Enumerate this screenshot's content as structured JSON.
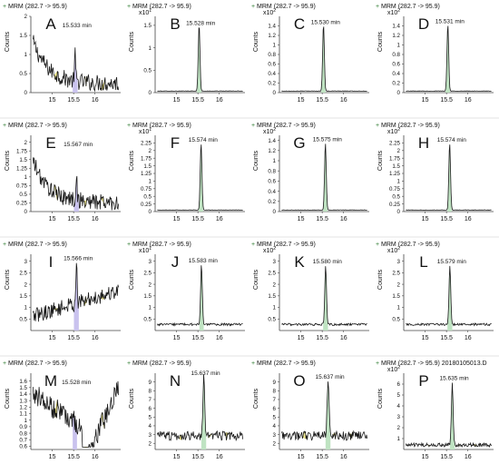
{
  "chart_data": [
    {
      "id": "A",
      "letter": "A",
      "type": "line",
      "header": "MRM (282.7 -> 95.9)",
      "ylabel": "Counts",
      "multiplier": "",
      "peak_label": "15.533 min",
      "peak_rt": 15.533,
      "profile": "noisy_down",
      "ylim": [
        0,
        2
      ],
      "yticks": [
        0,
        0.5,
        1,
        1.5,
        2
      ],
      "xlim": [
        14.5,
        16.6
      ],
      "xticks": [
        15,
        15.5,
        16
      ]
    },
    {
      "id": "B",
      "letter": "B",
      "type": "line",
      "header": "MRM (282.7 -> 95.9)",
      "ylabel": "Counts",
      "multiplier": "x10 1",
      "peak_label": "15.528 min",
      "peak_rt": 15.528,
      "profile": "clean",
      "ylim": [
        0,
        1.7
      ],
      "yticks": [
        0,
        0.5,
        1,
        1.5
      ],
      "xlim": [
        14.5,
        16.6
      ],
      "xticks": [
        15,
        15.5,
        16
      ]
    },
    {
      "id": "C",
      "letter": "C",
      "type": "line",
      "header": "MRM (282.7 -> 95.9)",
      "ylabel": "Counts",
      "multiplier": "x10 2",
      "peak_label": "15.530 min",
      "peak_rt": 15.53,
      "profile": "clean",
      "ylim": [
        0,
        1.6
      ],
      "yticks": [
        0,
        0.2,
        0.4,
        0.6,
        0.8,
        1,
        1.2,
        1.4
      ],
      "xlim": [
        14.5,
        16.6
      ],
      "xticks": [
        15,
        15.5,
        16
      ]
    },
    {
      "id": "D",
      "letter": "D",
      "type": "line",
      "header": "MRM (282.7 -> 95.9)",
      "ylabel": "Counts",
      "multiplier": "x10 2",
      "peak_label": "15.531 min",
      "peak_rt": 15.531,
      "profile": "clean",
      "ylim": [
        0,
        1.6
      ],
      "yticks": [
        0,
        0.2,
        0.4,
        0.6,
        0.8,
        1,
        1.2,
        1.4
      ],
      "xlim": [
        14.5,
        16.6
      ],
      "xticks": [
        15,
        15.5,
        16
      ]
    },
    {
      "id": "E",
      "letter": "E",
      "type": "line",
      "header": "MRM (282.7 -> 95.9)",
      "ylabel": "Counts",
      "multiplier": "",
      "peak_label": "15.567 min",
      "peak_rt": 15.567,
      "profile": "noisy_down",
      "ylim": [
        0,
        2.2
      ],
      "yticks": [
        0,
        0.25,
        0.5,
        0.75,
        1,
        1.25,
        1.5,
        1.75,
        2
      ],
      "xlim": [
        14.5,
        16.6
      ],
      "xticks": [
        15,
        15.5,
        16
      ]
    },
    {
      "id": "F",
      "letter": "F",
      "type": "line",
      "header": "MRM (282.7 -> 95.9)",
      "ylabel": "Counts",
      "multiplier": "x10 1",
      "peak_label": "15.574 min",
      "peak_rt": 15.574,
      "profile": "clean",
      "ylim": [
        0,
        2.5
      ],
      "yticks": [
        0,
        0.25,
        0.5,
        0.75,
        1,
        1.25,
        1.5,
        1.75,
        2,
        2.25
      ],
      "xlim": [
        14.5,
        16.6
      ],
      "xticks": [
        15,
        15.5,
        16
      ]
    },
    {
      "id": "G",
      "letter": "G",
      "type": "line",
      "header": "MRM (282.7 -> 95.9)",
      "ylabel": "Counts",
      "multiplier": "x10 2",
      "peak_label": "15.575 min",
      "peak_rt": 15.575,
      "profile": "clean",
      "ylim": [
        0,
        1.5
      ],
      "yticks": [
        0,
        0.2,
        0.4,
        0.6,
        0.8,
        1,
        1.2,
        1.4
      ],
      "xlim": [
        14.5,
        16.6
      ],
      "xticks": [
        15,
        15.5,
        16
      ]
    },
    {
      "id": "H",
      "letter": "H",
      "type": "line",
      "header": "MRM (282.7 -> 95.9)",
      "ylabel": "Counts",
      "multiplier": "x10 2",
      "peak_label": "15.574 min",
      "peak_rt": 15.574,
      "profile": "clean",
      "ylim": [
        0,
        2.5
      ],
      "yticks": [
        0,
        0.25,
        0.5,
        0.75,
        1,
        1.25,
        1.5,
        1.75,
        2,
        2.25
      ],
      "xlim": [
        14.5,
        16.6
      ],
      "xticks": [
        15,
        15.5,
        16
      ]
    },
    {
      "id": "I",
      "letter": "I",
      "type": "line",
      "header": "MRM (282.7 -> 95.9)",
      "ylabel": "Counts",
      "multiplier": "",
      "peak_label": "15.566 min",
      "peak_rt": 15.566,
      "profile": "noisy_up",
      "ylim": [
        0,
        3.3
      ],
      "yticks": [
        0.5,
        1,
        1.5,
        2,
        2.5,
        3
      ],
      "xlim": [
        14.5,
        16.6
      ],
      "xticks": [
        15,
        15.5,
        16
      ]
    },
    {
      "id": "J",
      "letter": "J",
      "type": "line",
      "header": "MRM (282.7 -> 95.9)",
      "ylabel": "Counts",
      "multiplier": "x10 1",
      "peak_label": "15.583 min",
      "peak_rt": 15.583,
      "profile": "clean_high",
      "ylim": [
        0,
        3.3
      ],
      "yticks": [
        0.5,
        1,
        1.5,
        2,
        2.5,
        3
      ],
      "xlim": [
        14.5,
        16.6
      ],
      "xticks": [
        15,
        15.5,
        16
      ]
    },
    {
      "id": "K",
      "letter": "K",
      "type": "line",
      "header": "MRM (282.7 -> 95.9)",
      "ylabel": "Counts",
      "multiplier": "x10 2",
      "peak_label": "15.580 min",
      "peak_rt": 15.58,
      "profile": "clean_high",
      "ylim": [
        0,
        3.3
      ],
      "yticks": [
        0.5,
        1,
        1.5,
        2,
        2.5,
        3
      ],
      "xlim": [
        14.5,
        16.6
      ],
      "xticks": [
        15,
        15.5,
        16
      ]
    },
    {
      "id": "L",
      "letter": "L",
      "type": "line",
      "header": "MRM (282.7 -> 95.9)",
      "ylabel": "Counts",
      "multiplier": "x10 2",
      "peak_label": "15.579 min",
      "peak_rt": 15.579,
      "profile": "clean_high",
      "ylim": [
        0,
        3.3
      ],
      "yticks": [
        0.5,
        1,
        1.5,
        2,
        2.5,
        3
      ],
      "xlim": [
        14.5,
        16.6
      ],
      "xticks": [
        15,
        15.5,
        16
      ]
    },
    {
      "id": "M",
      "letter": "M",
      "type": "line",
      "header": "MRM (282.7 -> 95.9)",
      "ylabel": "Counts",
      "multiplier": "",
      "peak_label": "15.528 min",
      "peak_rt": 15.528,
      "profile": "noisy_valley",
      "ylim": [
        0.55,
        1.72
      ],
      "yticks": [
        0.6,
        0.7,
        0.8,
        0.9,
        1,
        1.1,
        1.2,
        1.3,
        1.4,
        1.5,
        1.6
      ],
      "xlim": [
        14.5,
        16.6
      ],
      "xticks": [
        15,
        15.5,
        16
      ]
    },
    {
      "id": "N",
      "letter": "N",
      "type": "line",
      "header": "MRM (282.7 -> 95.9)",
      "ylabel": "Counts",
      "multiplier": "",
      "peak_label": "15.637 min",
      "peak_rt": 15.637,
      "profile": "noisy_peak",
      "ylim": [
        1.3,
        10
      ],
      "yticks": [
        2,
        3,
        4,
        5,
        6,
        7,
        8,
        9
      ],
      "xlim": [
        14.5,
        16.6
      ],
      "xticks": [
        15,
        15.5,
        16
      ]
    },
    {
      "id": "O",
      "letter": "O",
      "type": "line",
      "header": "MRM (282.7 -> 95.9)",
      "ylabel": "Counts",
      "multiplier": "",
      "peak_label": "15.637 min",
      "peak_rt": 15.637,
      "profile": "noisy_peak",
      "ylim": [
        1.3,
        10
      ],
      "yticks": [
        2,
        3,
        4,
        5,
        6,
        7,
        8,
        9
      ],
      "xlim": [
        14.5,
        16.6
      ],
      "xticks": [
        15,
        15.5,
        16
      ]
    },
    {
      "id": "P",
      "letter": "P",
      "type": "line",
      "header": "MRM (282.7 -> 95.9) 20180105013.D",
      "ylabel": "Counts",
      "multiplier": "x10 2",
      "peak_label": "15.635 min",
      "peak_rt": 15.635,
      "profile": "noisy_peak_low",
      "ylim": [
        0,
        7
      ],
      "yticks": [
        1,
        2,
        3,
        4,
        5,
        6
      ],
      "xlim": [
        14.5,
        16.6
      ],
      "xticks": [
        15,
        15.5,
        16
      ]
    }
  ],
  "colors": {
    "trace": "#1a1a1a",
    "peak_fill_clean": "#bfe3c2",
    "peak_fill_noise": "#c9c2ee",
    "noise_fill": "#f7f09a",
    "axis": "#444444",
    "text": "#111111",
    "divider": "#e3e3e3"
  }
}
